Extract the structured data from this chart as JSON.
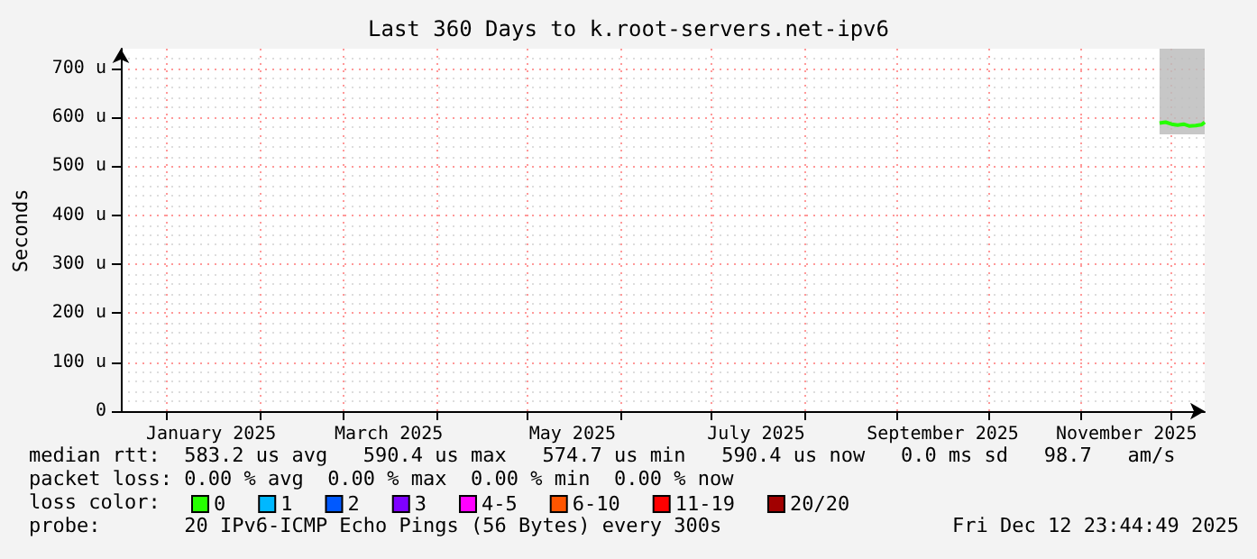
{
  "chart_data": {
    "type": "line",
    "title": "Last 360 Days to k.root-servers.net-ipv6",
    "ylabel": "Seconds",
    "x": [
      "2025-11-27",
      "2025-11-29",
      "2025-12-01",
      "2025-12-03",
      "2025-12-05",
      "2025-12-07",
      "2025-12-09",
      "2025-12-11",
      "2025-12-12"
    ],
    "series": [
      {
        "name": "0",
        "color": "#26ff00",
        "values": [
          588,
          590,
          586,
          584,
          586,
          582,
          583,
          585,
          590
        ],
        "lower": [
          565,
          565,
          565,
          565,
          565,
          565,
          565,
          565,
          565
        ],
        "upper": [
          740,
          740,
          740,
          740,
          740,
          740,
          740,
          740,
          740
        ]
      },
      {
        "name": "1",
        "color": "#00b8ff",
        "values": [
          null,
          null,
          null,
          null,
          null,
          null,
          null,
          null,
          null
        ]
      },
      {
        "name": "2",
        "color": "#0059ff",
        "values": [
          null,
          null,
          null,
          null,
          null,
          null,
          null,
          null,
          null
        ]
      },
      {
        "name": "3",
        "color": "#7e00ff",
        "values": [
          null,
          null,
          null,
          null,
          null,
          null,
          null,
          null,
          null
        ]
      },
      {
        "name": "4-5",
        "color": "#ff00ff",
        "values": [
          null,
          null,
          null,
          null,
          null,
          null,
          null,
          null,
          null
        ]
      },
      {
        "name": "6-10",
        "color": "#ff5500",
        "values": [
          null,
          null,
          null,
          null,
          null,
          null,
          null,
          null,
          null
        ]
      },
      {
        "name": "11-19",
        "color": "#ff0000",
        "values": [
          null,
          null,
          null,
          null,
          null,
          null,
          null,
          null,
          null
        ]
      },
      {
        "name": "20/20",
        "color": "#a10000",
        "values": [
          null,
          null,
          null,
          null,
          null,
          null,
          null,
          null,
          null
        ]
      }
    ],
    "xlim": [
      "2024-12-17",
      "2025-12-12"
    ],
    "xticks": [
      {
        "value": "2025-01-16",
        "label": "January 2025"
      },
      {
        "value": "2025-03-16",
        "label": "March 2025"
      },
      {
        "value": "2025-05-16",
        "label": "May 2025"
      },
      {
        "value": "2025-07-16",
        "label": "July 2025"
      },
      {
        "value": "2025-09-16",
        "label": "September 2025"
      },
      {
        "value": "2025-11-16",
        "label": "November 2025"
      }
    ],
    "ylim": [
      0,
      740
    ],
    "yticks": [
      0,
      {
        "value": 100,
        "label": "100 u"
      },
      {
        "value": 200,
        "label": "200 u"
      },
      {
        "value": 300,
        "label": "300 u"
      },
      {
        "value": 400,
        "label": "400 u"
      },
      {
        "value": 500,
        "label": "500 u"
      },
      {
        "value": 600,
        "label": "600 u"
      },
      {
        "value": 700,
        "label": "700 u"
      }
    ],
    "grid": true,
    "legend": "bottom",
    "marker": "none",
    "line_style": "solid",
    "annotations": [
      "median rtt:  583.2 us avg   590.4 us max   574.7 us min   590.4 us now   0.0 ms sd   98.7   am/s",
      "packet loss: 0.00 % avg  0.00 % max  0.00 % min  0.00 % now",
      "loss color:",
      "probe:       20 IPv6-ICMP Echo Pings (56 Bytes) every 300s",
      "Fri Dec 12 23:44:49 2025"
    ]
  }
}
